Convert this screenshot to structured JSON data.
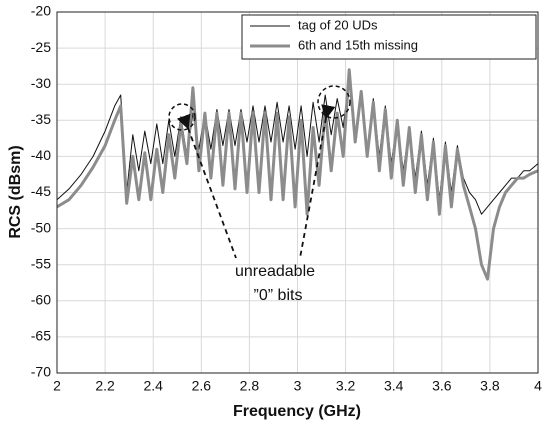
{
  "chart_data": {
    "type": "line",
    "xlabel": "Frequency (GHz)",
    "ylabel": "RCS (dBsm)",
    "annotations": [
      "unreadable",
      "”0” bits"
    ],
    "x": [
      2.0,
      2.05,
      2.1,
      2.15,
      2.2,
      2.24,
      2.265,
      2.29,
      2.315,
      2.34,
      2.365,
      2.39,
      2.415,
      2.44,
      2.465,
      2.49,
      2.515,
      2.54,
      2.565,
      2.59,
      2.615,
      2.64,
      2.665,
      2.69,
      2.715,
      2.74,
      2.765,
      2.79,
      2.815,
      2.84,
      2.865,
      2.89,
      2.915,
      2.94,
      2.965,
      2.99,
      3.015,
      3.04,
      3.065,
      3.09,
      3.115,
      3.14,
      3.165,
      3.19,
      3.215,
      3.24,
      3.265,
      3.29,
      3.315,
      3.34,
      3.365,
      3.39,
      3.415,
      3.44,
      3.465,
      3.49,
      3.515,
      3.54,
      3.565,
      3.59,
      3.615,
      3.64,
      3.665,
      3.69,
      3.715,
      3.74,
      3.765,
      3.79,
      3.815,
      3.84,
      3.865,
      3.89,
      3.915,
      3.94,
      3.965,
      4.0
    ],
    "series": [
      {
        "name": "tag of 20 UDs",
        "color": "#111111",
        "width": 1,
        "values": [
          -46,
          -44.5,
          -42.5,
          -40,
          -36.5,
          -33,
          -31.5,
          -45,
          -37,
          -42,
          -36.5,
          -41,
          -35.5,
          -41,
          -35,
          -40,
          -34.5,
          -40,
          -34,
          -39,
          -34,
          -39,
          -33.5,
          -38.5,
          -33.5,
          -38.5,
          -33.5,
          -38,
          -33,
          -38,
          -33,
          -38,
          -32.5,
          -38,
          -33,
          -39,
          -33,
          -40,
          -32.5,
          -38,
          -31.5,
          -37,
          -32,
          -36,
          -29,
          -37,
          -31,
          -39,
          -32,
          -40,
          -33,
          -41,
          -35,
          -42,
          -36,
          -43,
          -36.5,
          -44,
          -37.5,
          -46,
          -38,
          -45,
          -38.5,
          -43,
          -45,
          -46,
          -48,
          -47,
          -46,
          -45,
          -44,
          -43,
          -43,
          -42,
          -42,
          -41
        ]
      },
      {
        "name": "6th and 15th missing",
        "color": "#8c8c8c",
        "width": 3,
        "values": [
          -47,
          -46,
          -44,
          -41.5,
          -38.5,
          -35,
          -33,
          -46.5,
          -40,
          -46,
          -39.5,
          -46,
          -39,
          -45,
          -37,
          -43,
          -35.5,
          -41,
          -30.5,
          -42,
          -34,
          -43,
          -34,
          -44,
          -34,
          -44.5,
          -34,
          -45,
          -34,
          -45,
          -34,
          -46,
          -34,
          -46,
          -34.5,
          -47,
          -35,
          -48,
          -36,
          -44,
          -33.5,
          -42,
          -34,
          -40,
          -28,
          -38,
          -31,
          -40,
          -32.5,
          -42,
          -33.5,
          -43,
          -35,
          -44,
          -36,
          -45,
          -37,
          -46,
          -38,
          -48,
          -38.5,
          -47,
          -39,
          -44,
          -47,
          -50,
          -55,
          -57,
          -50,
          -47,
          -45,
          -44,
          -43,
          -43,
          -42.5,
          -42
        ]
      }
    ],
    "xlim": [
      2,
      4
    ],
    "xticks": [
      2,
      2.2,
      2.4,
      2.6,
      2.8,
      3,
      3.2,
      3.4,
      3.6,
      3.8,
      4
    ],
    "ylim": [
      -70,
      -20
    ],
    "yticks": [
      -20,
      -25,
      -30,
      -35,
      -40,
      -45,
      -50,
      -55,
      -60,
      -65,
      -70
    ],
    "grid": true,
    "legend": "upper right"
  }
}
